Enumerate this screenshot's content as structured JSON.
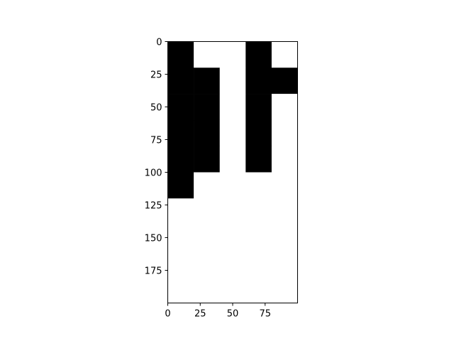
{
  "chart_data": {
    "type": "heatmap",
    "title": "",
    "xlabel": "",
    "ylabel": "",
    "xlim": [
      0,
      100
    ],
    "ylim": [
      200,
      0
    ],
    "cell_size": 20,
    "colors": {
      "filled": "#000000",
      "empty": "#ffffff",
      "axes": "#000000"
    },
    "x_ticks": [
      0,
      25,
      50,
      75
    ],
    "y_ticks": [
      0,
      25,
      50,
      75,
      100,
      125,
      150,
      175
    ],
    "x_tick_labels": [
      "0",
      "25",
      "50",
      "75"
    ],
    "y_tick_labels": [
      "0",
      "25",
      "50",
      "75",
      "100",
      "125",
      "150",
      "175"
    ],
    "grid": false,
    "matrix": [
      [
        1,
        0,
        0,
        1,
        0
      ],
      [
        1,
        1,
        0,
        1,
        1
      ],
      [
        1,
        1,
        0,
        1,
        0
      ],
      [
        1,
        1,
        0,
        1,
        0
      ],
      [
        1,
        1,
        0,
        1,
        0
      ],
      [
        1,
        0,
        0,
        0,
        0
      ],
      [
        0,
        0,
        0,
        0,
        0
      ],
      [
        0,
        0,
        0,
        0,
        0
      ],
      [
        0,
        0,
        0,
        0,
        0
      ],
      [
        0,
        0,
        0,
        0,
        0
      ]
    ]
  }
}
